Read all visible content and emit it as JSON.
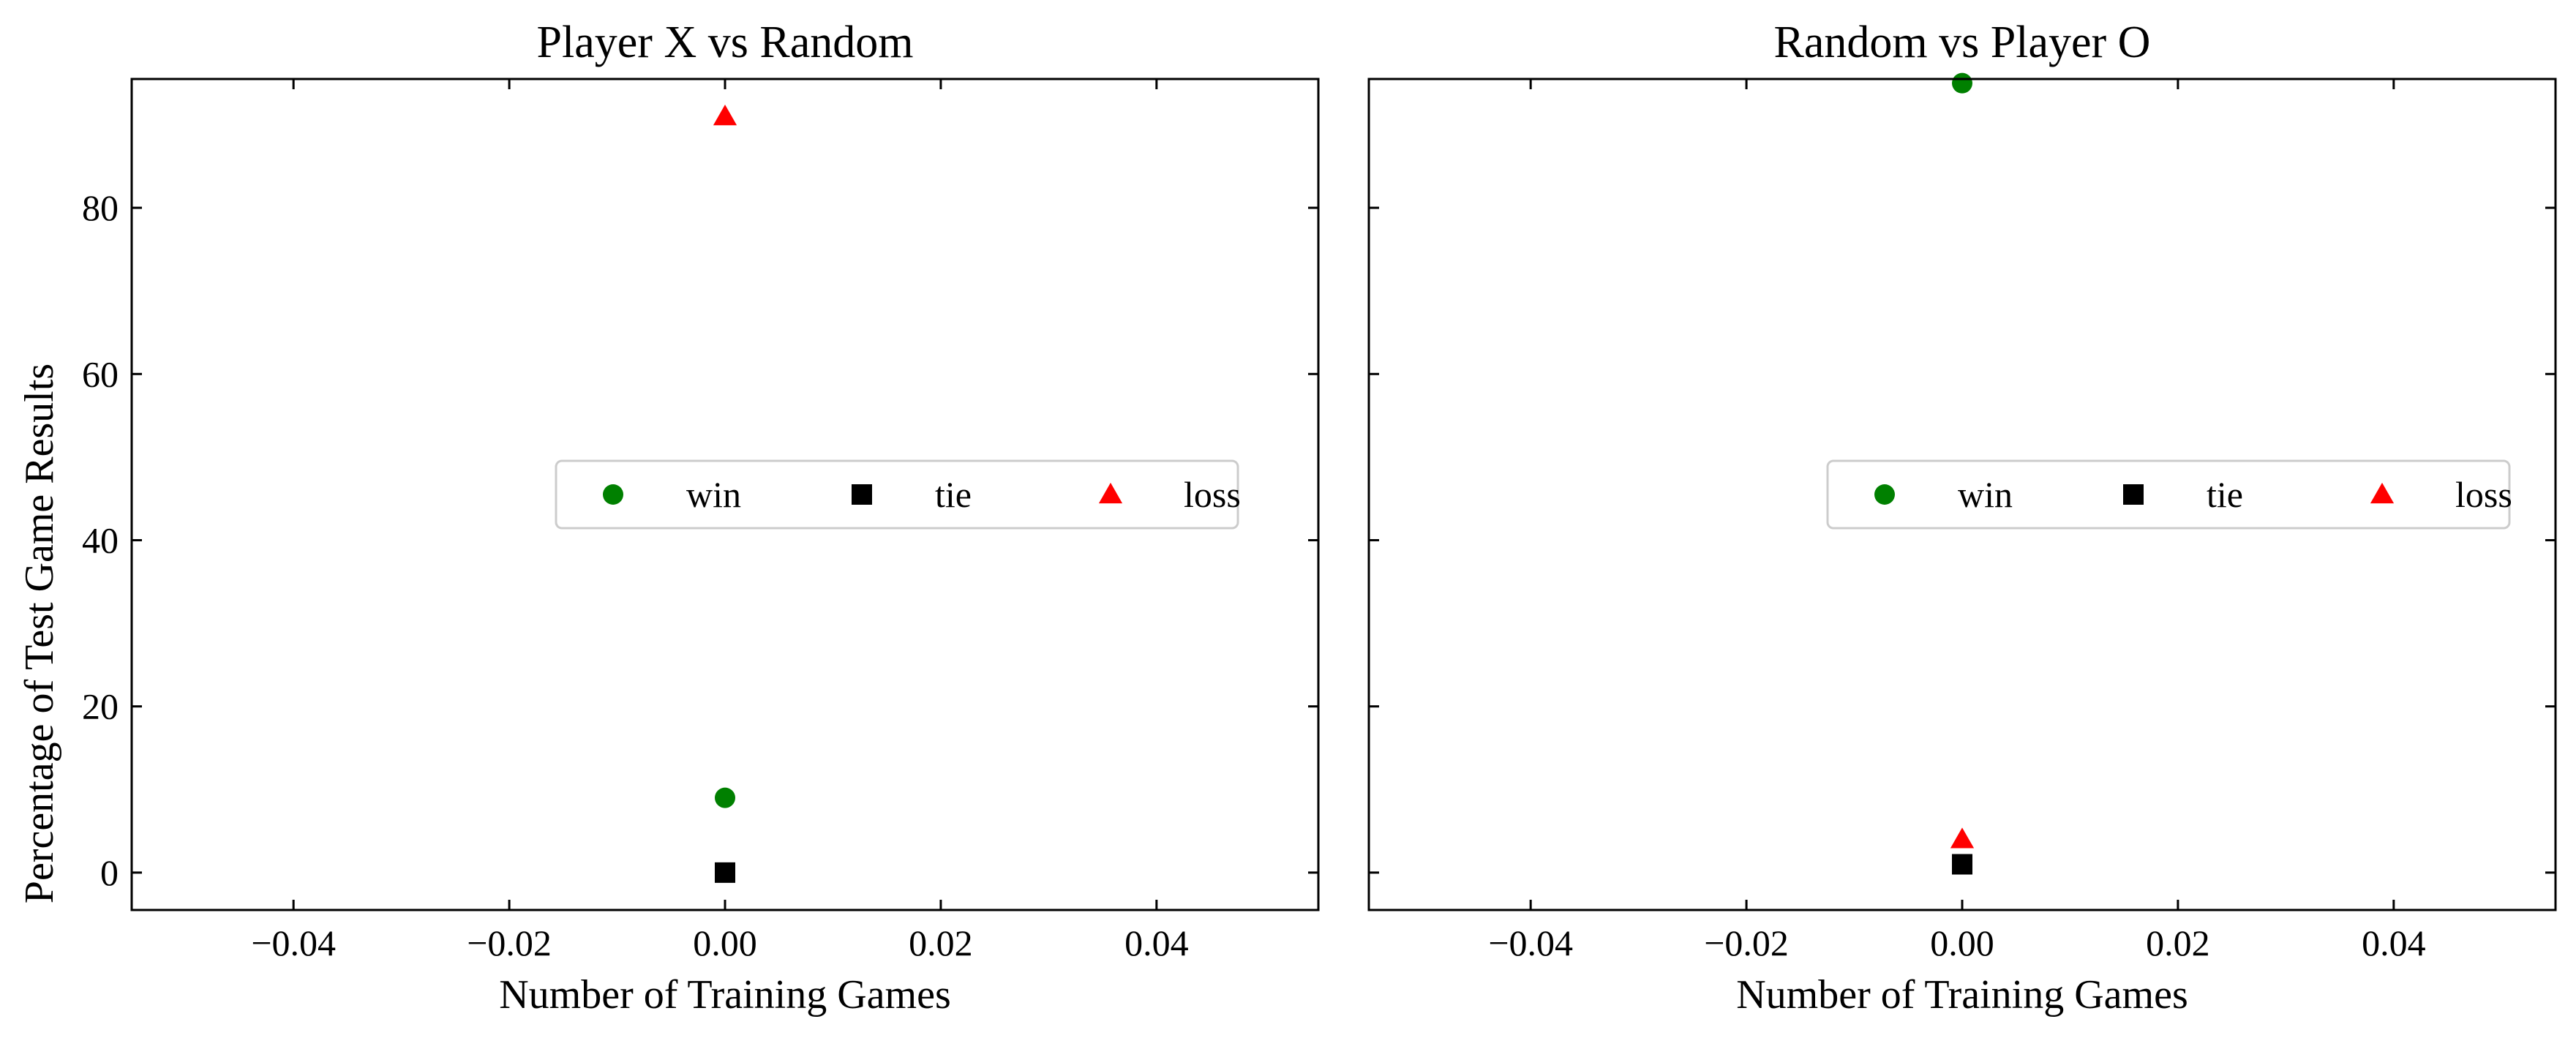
{
  "ylabel": "Percentage of Test Game Results",
  "legend_entries": [
    {
      "label": "win",
      "marker": "circle",
      "color": "#008000"
    },
    {
      "label": "tie",
      "marker": "square",
      "color": "#000000"
    },
    {
      "label": "loss",
      "marker": "triangle",
      "color": "#ff0000"
    }
  ],
  "chart_data": [
    {
      "type": "scatter",
      "title": "Player X vs Random",
      "xlabel": "Number of Training Games",
      "ylabel": "Percentage of Test Game Results",
      "xlim": [
        -0.055,
        0.055
      ],
      "ylim": [
        -4.5,
        95.5
      ],
      "xticks": [
        -0.04,
        -0.02,
        0.0,
        0.02,
        0.04
      ],
      "xtick_labels": [
        "−0.04",
        "−0.02",
        "0.00",
        "0.02",
        "0.04"
      ],
      "yticks": [
        0,
        20,
        40,
        60,
        80
      ],
      "ytick_labels": [
        "0",
        "20",
        "40",
        "60",
        "80"
      ],
      "grid": false,
      "legend_position": "center-right",
      "series": [
        {
          "name": "win",
          "marker": "circle",
          "color": "#008000",
          "x": [
            0.0
          ],
          "y": [
            9
          ]
        },
        {
          "name": "tie",
          "marker": "square",
          "color": "#000000",
          "x": [
            0.0
          ],
          "y": [
            0
          ]
        },
        {
          "name": "loss",
          "marker": "triangle",
          "color": "#ff0000",
          "x": [
            0.0
          ],
          "y": [
            91
          ]
        }
      ]
    },
    {
      "type": "scatter",
      "title": "Random vs Player O",
      "xlabel": "Number of Training Games",
      "ylabel": "",
      "xlim": [
        -0.055,
        0.055
      ],
      "ylim": [
        -4.5,
        95.5
      ],
      "xticks": [
        -0.04,
        -0.02,
        0.0,
        0.02,
        0.04
      ],
      "xtick_labels": [
        "−0.04",
        "−0.02",
        "0.00",
        "0.02",
        "0.04"
      ],
      "yticks": [
        0,
        20,
        40,
        60,
        80
      ],
      "ytick_labels": [],
      "grid": false,
      "legend_position": "center-right",
      "series": [
        {
          "name": "win",
          "marker": "circle",
          "color": "#008000",
          "x": [
            0.0
          ],
          "y": [
            95
          ]
        },
        {
          "name": "tie",
          "marker": "square",
          "color": "#000000",
          "x": [
            0.0
          ],
          "y": [
            1
          ]
        },
        {
          "name": "loss",
          "marker": "triangle",
          "color": "#ff0000",
          "x": [
            0.0
          ],
          "y": [
            4
          ]
        }
      ]
    }
  ]
}
